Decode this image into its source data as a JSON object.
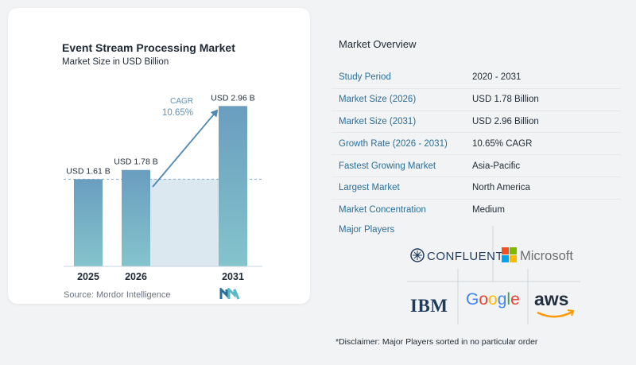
{
  "chart_data": {
    "type": "bar",
    "title": "Event Stream Processing Market",
    "subtitle": "Market Size in USD Billion",
    "categories": [
      "2025",
      "2026",
      "2031"
    ],
    "values": [
      1.61,
      1.78,
      2.96
    ],
    "value_labels": [
      "USD 1.61 B",
      "USD 1.78 B",
      "USD 2.96 B"
    ],
    "cagr_label": "CAGR",
    "cagr_value": "10.65%",
    "ylim": [
      0,
      3.2
    ],
    "grid": false,
    "bar_color_top": "#6a9dbf",
    "bar_color_bottom": "#84c4cc",
    "source": "Source:  Mordor Intelligence"
  },
  "overview": {
    "title": "Market Overview",
    "rows": [
      {
        "key": "Study Period",
        "value": "2020 - 2031"
      },
      {
        "key": "Market Size (2026)",
        "value": "USD 1.78 Billion"
      },
      {
        "key": "Market Size (2031)",
        "value": "USD 2.96 Billion"
      },
      {
        "key": "Growth Rate (2026 - 2031)",
        "value": "10.65% CAGR"
      },
      {
        "key": "Fastest Growing Market",
        "value": "Asia-Pacific"
      },
      {
        "key": "Largest Market",
        "value": "North America"
      },
      {
        "key": "Market Concentration",
        "value": "Medium"
      }
    ],
    "players_label": "Major Players",
    "players": [
      "CONFLUENT",
      "Microsoft",
      "IBM",
      "Google",
      "aws"
    ],
    "disclaimer": "*Disclaimer: Major Players sorted in no particular order"
  },
  "colors": {
    "accent": "#2a6f97",
    "arrow": "#4f88b3",
    "highlight_area": "#dbe8f0"
  }
}
